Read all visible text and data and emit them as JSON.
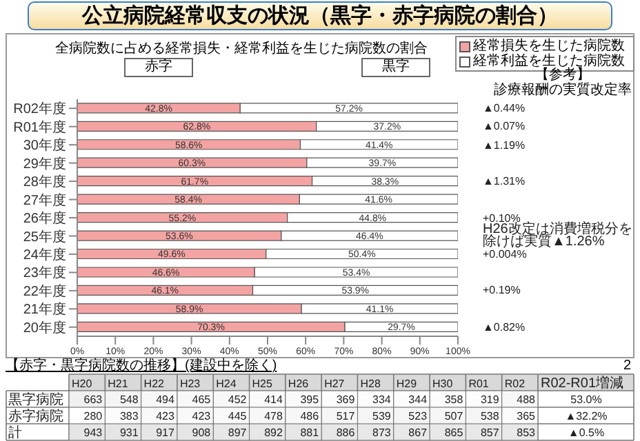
{
  "chart_data": [
    {
      "type": "bar",
      "orientation": "horizontal",
      "stacked": true,
      "title": "公立病院経常収支の状況（黒字・赤字病院の割合）",
      "subtitle": "全病院数に占める経常損失・経常利益を生じた病院数の割合",
      "categories": [
        "R02年度",
        "R01年度",
        "30年度",
        "29年度",
        "28年度",
        "27年度",
        "26年度",
        "25年度",
        "24年度",
        "23年度",
        "22年度",
        "21年度",
        "20年度"
      ],
      "series": [
        {
          "name": "経常損失を生じた病院数",
          "color": "#f4a3a3",
          "values": [
            42.8,
            62.8,
            58.6,
            60.3,
            61.7,
            58.4,
            55.2,
            53.6,
            49.6,
            46.6,
            46.1,
            58.9,
            70.3
          ],
          "value_labels": [
            "42.8%",
            "62.8%",
            "58.6%",
            "60.3%",
            "61.7%",
            "58.4%",
            "55.2%",
            "53.6%",
            "49.6%",
            "46.6%",
            "46.1%",
            "58.9%",
            "70.3%"
          ]
        },
        {
          "name": "経常利益を生じた病院数",
          "color": "#ffffff",
          "values": [
            57.2,
            37.2,
            41.4,
            39.7,
            38.3,
            41.6,
            44.8,
            46.4,
            50.4,
            53.4,
            53.9,
            41.1,
            29.7
          ],
          "value_labels": [
            "57.2%",
            "37.2%",
            "41.4%",
            "39.7%",
            "38.3%",
            "41.6%",
            "44.8%",
            "46.4%",
            "50.4%",
            "53.4%",
            "53.9%",
            "41.1%",
            "29.7%"
          ]
        }
      ],
      "xlim": [
        0,
        100
      ],
      "xticks": [
        {
          "value": 0,
          "label": "0%"
        },
        {
          "value": 10,
          "label": "10%"
        },
        {
          "value": 20,
          "label": "20%"
        },
        {
          "value": 30,
          "label": "30%"
        },
        {
          "value": 40,
          "label": "40%"
        },
        {
          "value": 50,
          "label": "50%"
        },
        {
          "value": 60,
          "label": "60%"
        },
        {
          "value": 70,
          "label": "70%"
        },
        {
          "value": 80,
          "label": "80%"
        },
        {
          "value": 90,
          "label": "90%"
        },
        {
          "value": 100,
          "label": "100%"
        }
      ],
      "legend": "top right",
      "annotations": [
        "赤字",
        "黒字",
        "【参考】",
        "診療報酬の実質改定率",
        "2",
        "▲0.44%",
        "▲0.07%",
        "▲1.19%",
        "▲1.31%",
        "+0.10%",
        "H26改定は消費増税分を除けば実質▲1.26%",
        "+0.004%",
        "+0.19%",
        "▲0.82%"
      ]
    },
    {
      "type": "heatmap",
      "title": "【赤字・黒字病院数の推移】(建設中を除く)",
      "categories": [
        "H20",
        "H21",
        "H22",
        "H23",
        "H24",
        "H25",
        "H26",
        "H27",
        "H28",
        "H29",
        "H30",
        "R01",
        "R02",
        "R02-R01増減"
      ],
      "y_categories": [
        "黒字病院",
        "赤字病院",
        "計"
      ],
      "cells": [
        [
          663,
          548,
          494,
          465,
          452,
          414,
          395,
          369,
          334,
          344,
          358,
          319,
          488,
          null
        ],
        [
          280,
          383,
          423,
          423,
          445,
          478,
          486,
          517,
          539,
          523,
          507,
          538,
          365,
          null
        ],
        [
          943,
          931,
          917,
          908,
          897,
          892,
          881,
          886,
          873,
          867,
          865,
          857,
          853,
          null
        ]
      ],
      "cell_labels": [
        [
          "663",
          "548",
          "494",
          "465",
          "452",
          "414",
          "395",
          "369",
          "334",
          "344",
          "358",
          "319",
          "488",
          "53.0%"
        ],
        [
          "280",
          "383",
          "423",
          "423",
          "445",
          "478",
          "486",
          "517",
          "539",
          "523",
          "507",
          "538",
          "365",
          "▲32.2%"
        ],
        [
          "943",
          "931",
          "917",
          "908",
          "897",
          "892",
          "881",
          "886",
          "873",
          "867",
          "865",
          "857",
          "853",
          "▲0.5%"
        ]
      ]
    }
  ]
}
